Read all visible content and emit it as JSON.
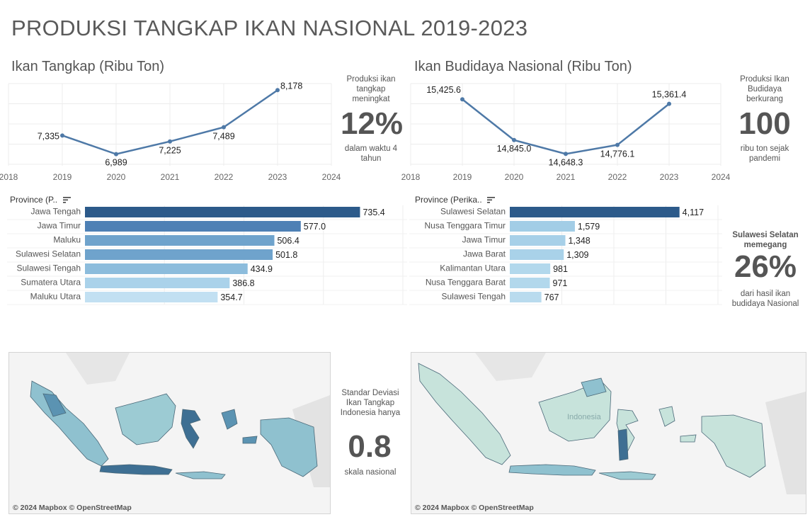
{
  "title": "PRODUKSI TANGKAP IKAN NASIONAL 2019-2023",
  "left": {
    "line_title": "Ikan Tangkap (Ribu Ton)",
    "kpi_top": "Produksi ikan tangkap meningkat",
    "kpi_value": "12%",
    "kpi_bottom": "dalam waktu 4 tahun",
    "bar_header": "Province (P..",
    "map_kpi_top": "Standar Deviasi Ikan Tangkap Indonesia hanya",
    "map_kpi_value": "0.8",
    "map_kpi_bottom": "skala nasional",
    "map_attribution": "© 2024 Mapbox © OpenStreetMap"
  },
  "right": {
    "line_title": "Ikan Budidaya Nasional (Ribu Ton)",
    "kpi_top": "Produksi Ikan Budidaya berkurang",
    "kpi_value": "100",
    "kpi_bottom": "ribu ton sejak pandemi",
    "bar_header": "Province (Perika..",
    "bar_kpi_top": "Sulawesi Selatan memegang",
    "bar_kpi_value": "26%",
    "bar_kpi_bottom": "dari hasil ikan budidaya Nasional",
    "map_attribution": "© 2024 Mapbox © OpenStreetMap",
    "map_watermark": "Indonesia"
  },
  "colors": {
    "line": "#4e79a7",
    "bar_dark": "#2c5a8a",
    "map_fill": "#9ccbd3"
  },
  "chart_data": [
    {
      "type": "line",
      "title": "Ikan Tangkap (Ribu Ton)",
      "x": [
        2019,
        2020,
        2021,
        2022,
        2023
      ],
      "values": [
        7335,
        6989,
        7225,
        7489,
        8178
      ],
      "labels": [
        "7,335",
        "6,989",
        "7,225",
        "7,489",
        "8,178"
      ],
      "xticks": [
        "2018",
        "2019",
        "2020",
        "2021",
        "2022",
        "2023",
        "2024"
      ],
      "xlim": [
        2018,
        2024
      ],
      "ylim": [
        6800,
        8300
      ]
    },
    {
      "type": "line",
      "title": "Ikan Budidaya Nasional (Ribu Ton)",
      "x": [
        2019,
        2020,
        2021,
        2022,
        2023
      ],
      "values": [
        15425.6,
        14845.0,
        14648.3,
        14776.1,
        15361.4
      ],
      "labels": [
        "15,425.6",
        "14,845.0",
        "14,648.3",
        "14,776.1",
        "15,361.4"
      ],
      "xticks": [
        "2018",
        "2019",
        "2020",
        "2021",
        "2022",
        "2023",
        "2024"
      ],
      "xlim": [
        2018,
        2024
      ],
      "ylim": [
        14500,
        15650
      ]
    },
    {
      "type": "bar",
      "orientation": "horizontal",
      "categories": [
        "Jawa Tengah",
        "Jawa Timur",
        "Maluku",
        "Sulawesi Selatan",
        "Sulawesi Tengah",
        "Sumatera Utara",
        "Maluku Utara"
      ],
      "values": [
        735.4,
        577.0,
        506.4,
        501.8,
        434.9,
        386.8,
        354.7
      ],
      "labels": [
        "735.4",
        "577.0",
        "506.4",
        "501.8",
        "434.9",
        "386.8",
        "354.7"
      ],
      "xlim": [
        0,
        850
      ],
      "colors": [
        "#2c5a8a",
        "#4e80b5",
        "#6fa3cc",
        "#6fa3cc",
        "#8cbcdc",
        "#aad2ea",
        "#c2e0f2"
      ]
    },
    {
      "type": "bar",
      "orientation": "horizontal",
      "categories": [
        "Sulawesi Selatan",
        "Nusa Tenggara Timur",
        "Jawa Timur",
        "Jawa Barat",
        "Kalimantan Utara",
        "Nusa Tenggara Barat",
        "Sulawesi Tengah"
      ],
      "values": [
        4117,
        1579,
        1348,
        1309,
        981,
        971,
        767
      ],
      "labels": [
        "4,117",
        "1,579",
        "1,348",
        "1,309",
        "981",
        "971",
        "767"
      ],
      "xlim": [
        0,
        5050
      ],
      "colors": [
        "#2c5a8a",
        "#a2cde6",
        "#a7d0e8",
        "#a9d2e9",
        "#b2d8ec",
        "#b2d8ec",
        "#b9dbee"
      ]
    }
  ]
}
